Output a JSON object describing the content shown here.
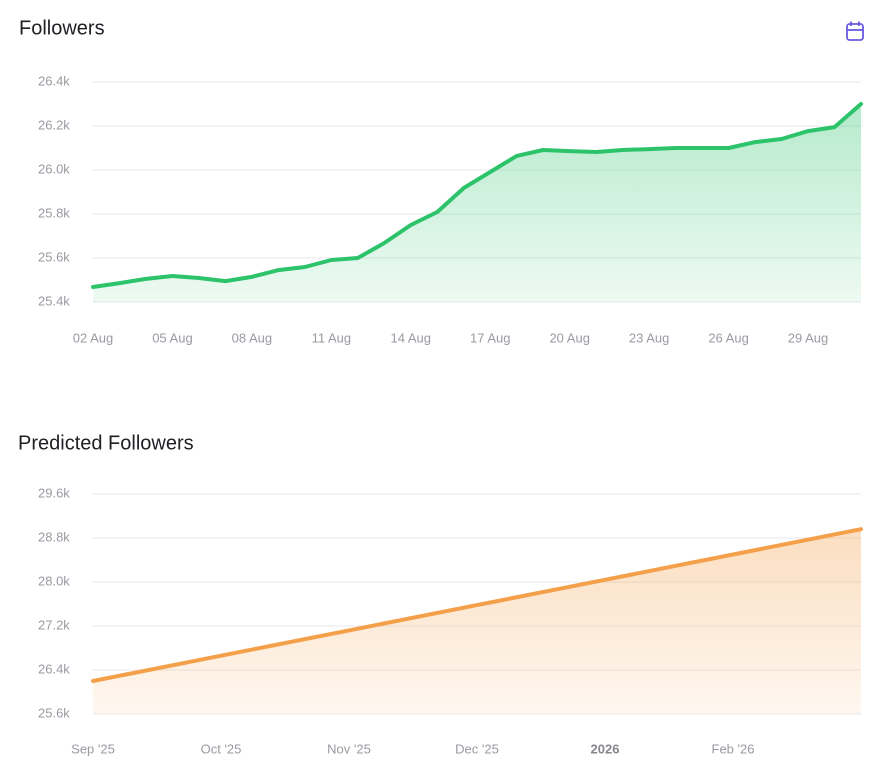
{
  "chart_data": [
    {
      "type": "area",
      "title": "Followers",
      "color": "#2cc36b",
      "grid": true,
      "categories": [
        "02 Aug",
        null,
        null,
        "05 Aug",
        null,
        null,
        "08 Aug",
        null,
        null,
        "11 Aug",
        null,
        null,
        "14 Aug",
        null,
        null,
        "17 Aug",
        null,
        null,
        "20 Aug",
        null,
        null,
        "23 Aug",
        null,
        null,
        "26 Aug",
        null,
        null,
        "29 Aug",
        null,
        null
      ],
      "values": [
        25468,
        25486,
        25505,
        25518,
        25509,
        25495,
        25514,
        25545,
        25559,
        25591,
        25600,
        25668,
        25750,
        25809,
        25918,
        25991,
        26064,
        26091,
        26086,
        26082,
        26091,
        26095,
        26100,
        26100,
        26100,
        26127,
        26141,
        26177,
        26195,
        26300
      ],
      "ylim": [
        25400,
        26400
      ],
      "yticks": [
        {
          "value": 25400,
          "label": "25.4k"
        },
        {
          "value": 25600,
          "label": "25.6k"
        },
        {
          "value": 25800,
          "label": "25.8k"
        },
        {
          "value": 26000,
          "label": "26.0k"
        },
        {
          "value": 26200,
          "label": "26.2k"
        },
        {
          "value": 26400,
          "label": "26.4k"
        }
      ]
    },
    {
      "type": "area",
      "title": "Predicted Followers",
      "color": "#f4a04a",
      "grid": true,
      "categories": [
        "Sep '25",
        "Oct '25",
        "Nov '25",
        "Dec '25",
        "2026",
        "Feb '26",
        null
      ],
      "values": [
        26200,
        26660,
        27120,
        27580,
        28040,
        28500,
        28960
      ],
      "ylim": [
        25600,
        29600
      ],
      "yticks": [
        {
          "value": 25600,
          "label": "25.6k"
        },
        {
          "value": 26400,
          "label": "26.4k"
        },
        {
          "value": 27200,
          "label": "27.2k"
        },
        {
          "value": 28000,
          "label": "28.0k"
        },
        {
          "value": 28800,
          "label": "28.8k"
        },
        {
          "value": 29600,
          "label": "29.6k"
        }
      ]
    }
  ]
}
